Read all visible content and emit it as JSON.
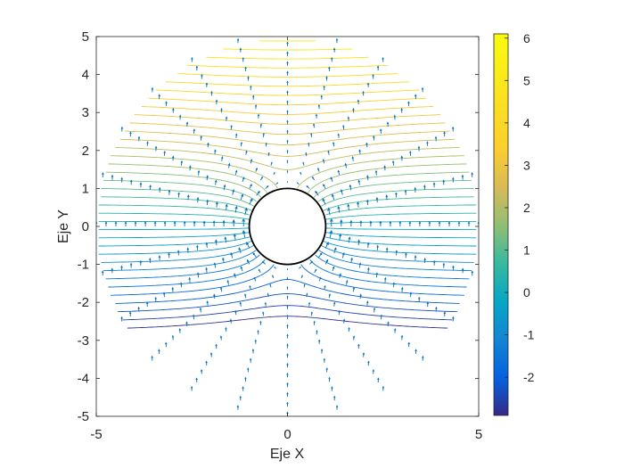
{
  "chart_data": {
    "type": "contour",
    "title": "",
    "xlabel": "Eje X",
    "ylabel": "Eje Y",
    "xlim": [
      -5,
      5
    ],
    "ylim": [
      -5,
      5
    ],
    "xticks": [
      "-5",
      "0",
      "5"
    ],
    "yticks": [
      "5",
      "4",
      "3",
      "2",
      "1",
      "0",
      "-1",
      "-2",
      "-3",
      "-4",
      "-5"
    ],
    "grid": false,
    "field": {
      "description_units": "potential flow around a cylinder, velocity potential phi = y + y/(x^2+y^2)",
      "domain": "annulus",
      "inner_radius": 1,
      "outer_radius": 5,
      "contour_count": 40,
      "quiver_angles_deg": [
        0,
        15,
        30,
        45,
        60,
        75,
        90,
        105,
        120,
        135,
        150,
        165,
        180,
        195,
        210,
        225,
        240,
        255,
        270,
        285,
        300,
        315,
        330,
        345
      ],
      "quiver_radial_steps": 16
    },
    "colorbar": {
      "range": [
        -2.9,
        6.1
      ],
      "ticks": [
        "6",
        "5",
        "4",
        "3",
        "2",
        "1",
        "0",
        "-1",
        "-2"
      ],
      "colormap": "parula"
    },
    "colors": {
      "arrows": "#0072BD",
      "cylinder": "#000000",
      "axes": "#262626"
    }
  }
}
